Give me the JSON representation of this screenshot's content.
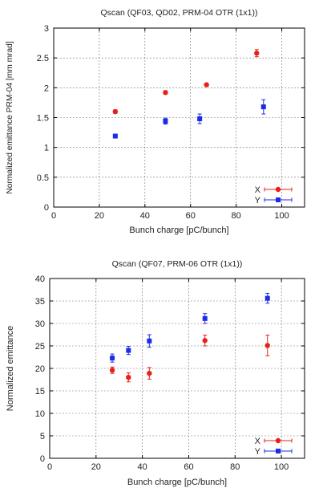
{
  "chart_data": [
    {
      "type": "scatter",
      "title": "Qscan (QF03, QD02, PRM-04 OTR (1x1))",
      "xlabel": "Bunch charge [pC/bunch]",
      "ylabel": "Normalized emittance PRM-04 [mm mrad]",
      "xlim": [
        0,
        110
      ],
      "ylim": [
        0,
        3
      ],
      "xticks": [
        "0",
        "20",
        "40",
        "60",
        "80",
        "100"
      ],
      "yticks": [
        "0",
        "0.5",
        "1",
        "1.5",
        "2",
        "2.5",
        "3"
      ],
      "grid": true,
      "legend_position": "bottom-right",
      "series": [
        {
          "name": "X",
          "color": "#e8201c",
          "marker": "circle",
          "x": [
            27,
            49,
            67,
            89
          ],
          "y": [
            1.6,
            1.92,
            2.05,
            2.58
          ],
          "yerr": [
            0.03,
            0.03,
            0.02,
            0.06
          ]
        },
        {
          "name": "Y",
          "color": "#1c2be8",
          "marker": "square",
          "x": [
            27,
            49,
            64,
            92
          ],
          "y": [
            1.19,
            1.44,
            1.48,
            1.68
          ],
          "yerr": [
            0.02,
            0.05,
            0.08,
            0.12
          ]
        }
      ]
    },
    {
      "type": "scatter",
      "title": "Qscan (QF07, PRM-06 OTR (1x1))",
      "xlabel": "Bunch charge [pC/bunch]",
      "ylabel": "Normalized emittance",
      "xlim": [
        0,
        110
      ],
      "ylim": [
        0,
        40
      ],
      "xticks": [
        "0",
        "20",
        "40",
        "60",
        "80",
        "100"
      ],
      "yticks": [
        "0",
        "5",
        "10",
        "15",
        "20",
        "25",
        "30",
        "35",
        "40"
      ],
      "grid": true,
      "legend_position": "bottom-right",
      "series": [
        {
          "name": "X",
          "color": "#e8201c",
          "marker": "circle",
          "x": [
            27,
            34,
            43,
            67,
            94
          ],
          "y": [
            19.6,
            18.0,
            18.9,
            26.2,
            25.1
          ],
          "yerr": [
            0.7,
            1.0,
            1.3,
            1.2,
            2.3
          ]
        },
        {
          "name": "Y",
          "color": "#1c2be8",
          "marker": "square",
          "x": [
            27,
            34,
            43,
            67,
            94
          ],
          "y": [
            22.3,
            24.0,
            26.1,
            31.1,
            35.6
          ],
          "yerr": [
            0.9,
            0.9,
            1.4,
            1.1,
            1.1
          ]
        }
      ]
    }
  ]
}
